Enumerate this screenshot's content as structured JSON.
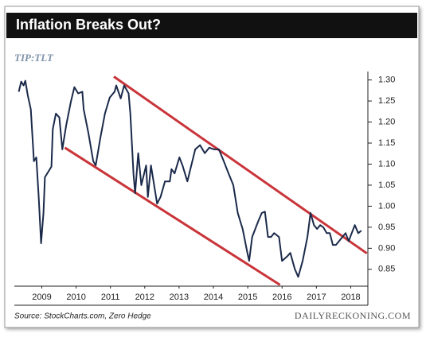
{
  "chart_data": {
    "type": "line",
    "title": "Inflation Breaks Out?",
    "subtitle": "TIP:TLT",
    "source": "Source: StockCharts.com, Zero Hedge",
    "brand": "DAILYRECKONING.COM",
    "xlim": [
      2008.7,
      2019.0
    ],
    "xticks": [
      {
        "value": 2009.5,
        "label": "2009"
      },
      {
        "value": 2010.5,
        "label": "2010"
      },
      {
        "value": 2011.5,
        "label": "2011"
      },
      {
        "value": 2012.5,
        "label": "2012"
      },
      {
        "value": 2013.5,
        "label": "2013"
      },
      {
        "value": 2014.5,
        "label": "2014"
      },
      {
        "value": 2015.5,
        "label": "2015"
      },
      {
        "value": 2016.5,
        "label": "2016"
      },
      {
        "value": 2017.5,
        "label": "2017"
      },
      {
        "value": 2018.5,
        "label": "2018"
      }
    ],
    "ylim": [
      0.81,
      1.32
    ],
    "yticks": [
      {
        "value": 0.85,
        "label": "0.85"
      },
      {
        "value": 0.9,
        "label": "0.90"
      },
      {
        "value": 0.95,
        "label": "0.95"
      },
      {
        "value": 1.0,
        "label": "1.00"
      },
      {
        "value": 1.05,
        "label": "1.05"
      },
      {
        "value": 1.1,
        "label": "1.10"
      },
      {
        "value": 1.15,
        "label": "1.15"
      },
      {
        "value": 1.2,
        "label": "1.20"
      },
      {
        "value": 1.25,
        "label": "1.25"
      },
      {
        "value": 1.3,
        "label": "1.30"
      }
    ],
    "x": [
      2008.83,
      2008.9,
      2008.97,
      2009.02,
      2009.09,
      2009.18,
      2009.27,
      2009.34,
      2009.41,
      2009.48,
      2009.55,
      2009.59,
      2009.66,
      2009.78,
      2009.82,
      2009.91,
      2010.01,
      2010.1,
      2010.21,
      2010.35,
      2010.45,
      2010.56,
      2010.68,
      2010.72,
      2010.86,
      2011.0,
      2011.07,
      2011.21,
      2011.34,
      2011.48,
      2011.62,
      2011.67,
      2011.8,
      2011.9,
      2012.03,
      2012.08,
      2012.17,
      2012.22,
      2012.31,
      2012.4,
      2012.54,
      2012.59,
      2012.68,
      2012.86,
      2012.96,
      2013.09,
      2013.23,
      2013.28,
      2013.37,
      2013.51,
      2013.6,
      2013.74,
      2013.83,
      2013.97,
      2014.11,
      2014.25,
      2014.38,
      2014.52,
      2014.66,
      2014.8,
      2014.94,
      2015.08,
      2015.21,
      2015.35,
      2015.49,
      2015.54,
      2015.63,
      2015.72,
      2015.81,
      2015.91,
      2016.0,
      2016.09,
      2016.18,
      2016.27,
      2016.41,
      2016.5,
      2016.64,
      2016.74,
      2016.87,
      2016.97,
      2017.1,
      2017.24,
      2017.33,
      2017.43,
      2017.52,
      2017.61,
      2017.7,
      2017.8,
      2017.89,
      2017.98,
      2018.07,
      2018.16,
      2018.26,
      2018.35,
      2018.44,
      2018.53,
      2018.62,
      2018.72,
      2018.81
    ],
    "series": [
      {
        "color": "#1b2a4a",
        "values": [
          1.272,
          1.296,
          1.287,
          1.298,
          1.264,
          1.23,
          1.107,
          1.116,
          1.022,
          0.912,
          0.984,
          1.069,
          1.078,
          1.094,
          1.183,
          1.22,
          1.211,
          1.135,
          1.192,
          1.249,
          1.283,
          1.268,
          1.272,
          1.23,
          1.173,
          1.107,
          1.097,
          1.164,
          1.22,
          1.258,
          1.272,
          1.287,
          1.256,
          1.287,
          1.268,
          1.22,
          1.078,
          1.031,
          1.126,
          1.05,
          1.097,
          1.022,
          1.097,
          1.006,
          1.022,
          1.059,
          1.059,
          1.088,
          1.078,
          1.116,
          1.097,
          1.059,
          1.088,
          1.135,
          1.145,
          1.126,
          1.139,
          1.135,
          1.135,
          1.107,
          1.078,
          1.05,
          0.984,
          0.946,
          0.889,
          0.87,
          0.927,
          0.946,
          0.965,
          0.984,
          0.987,
          0.927,
          0.927,
          0.936,
          0.927,
          0.87,
          0.88,
          0.889,
          0.851,
          0.832,
          0.87,
          0.927,
          0.984,
          0.955,
          0.946,
          0.955,
          0.95,
          0.936,
          0.936,
          0.908,
          0.908,
          0.917,
          0.927,
          0.936,
          0.917,
          0.936,
          0.955,
          0.936,
          0.942
        ]
      }
    ],
    "trendlines": [
      {
        "color": "#c9353a",
        "x": [
          2011.6,
          2018.97
        ],
        "y": [
          1.308,
          0.888
        ]
      },
      {
        "color": "#c9353a",
        "x": [
          2010.17,
          2016.44
        ],
        "y": [
          1.139,
          0.813
        ]
      }
    ]
  }
}
